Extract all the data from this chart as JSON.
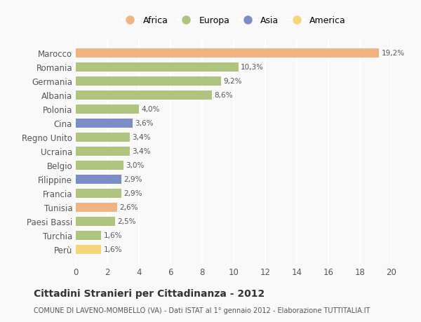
{
  "countries": [
    "Marocco",
    "Romania",
    "Germania",
    "Albania",
    "Polonia",
    "Cina",
    "Regno Unito",
    "Ucraina",
    "Belgio",
    "Filippine",
    "Francia",
    "Tunisia",
    "Paesi Bassi",
    "Turchia",
    "Perù"
  ],
  "values": [
    19.2,
    10.3,
    9.2,
    8.6,
    4.0,
    3.6,
    3.4,
    3.4,
    3.0,
    2.9,
    2.9,
    2.6,
    2.5,
    1.6,
    1.6
  ],
  "labels": [
    "19,2%",
    "10,3%",
    "9,2%",
    "8,6%",
    "4,0%",
    "3,6%",
    "3,4%",
    "3,4%",
    "3,0%",
    "2,9%",
    "2,9%",
    "2,6%",
    "2,5%",
    "1,6%",
    "1,6%"
  ],
  "colors": [
    "#f0b482",
    "#afc47e",
    "#afc47e",
    "#afc47e",
    "#afc47e",
    "#7a8dc4",
    "#afc47e",
    "#afc47e",
    "#afc47e",
    "#7a8dc4",
    "#afc47e",
    "#f0b482",
    "#afc47e",
    "#afc47e",
    "#f5d67a"
  ],
  "legend": {
    "Africa": "#f0b482",
    "Europa": "#afc47e",
    "Asia": "#7a8dc4",
    "America": "#f5d67a"
  },
  "title": "Cittadini Stranieri per Cittadinanza - 2012",
  "subtitle": "COMUNE DI LAVENO-MOMBELLO (VA) - Dati ISTAT al 1° gennaio 2012 - Elaborazione TUTTITALIA.IT",
  "xlim": [
    0,
    20
  ],
  "xticks": [
    0,
    2,
    4,
    6,
    8,
    10,
    12,
    14,
    16,
    18,
    20
  ],
  "background_color": "#f9f9f9",
  "grid_color": "#ffffff",
  "bar_height": 0.65
}
